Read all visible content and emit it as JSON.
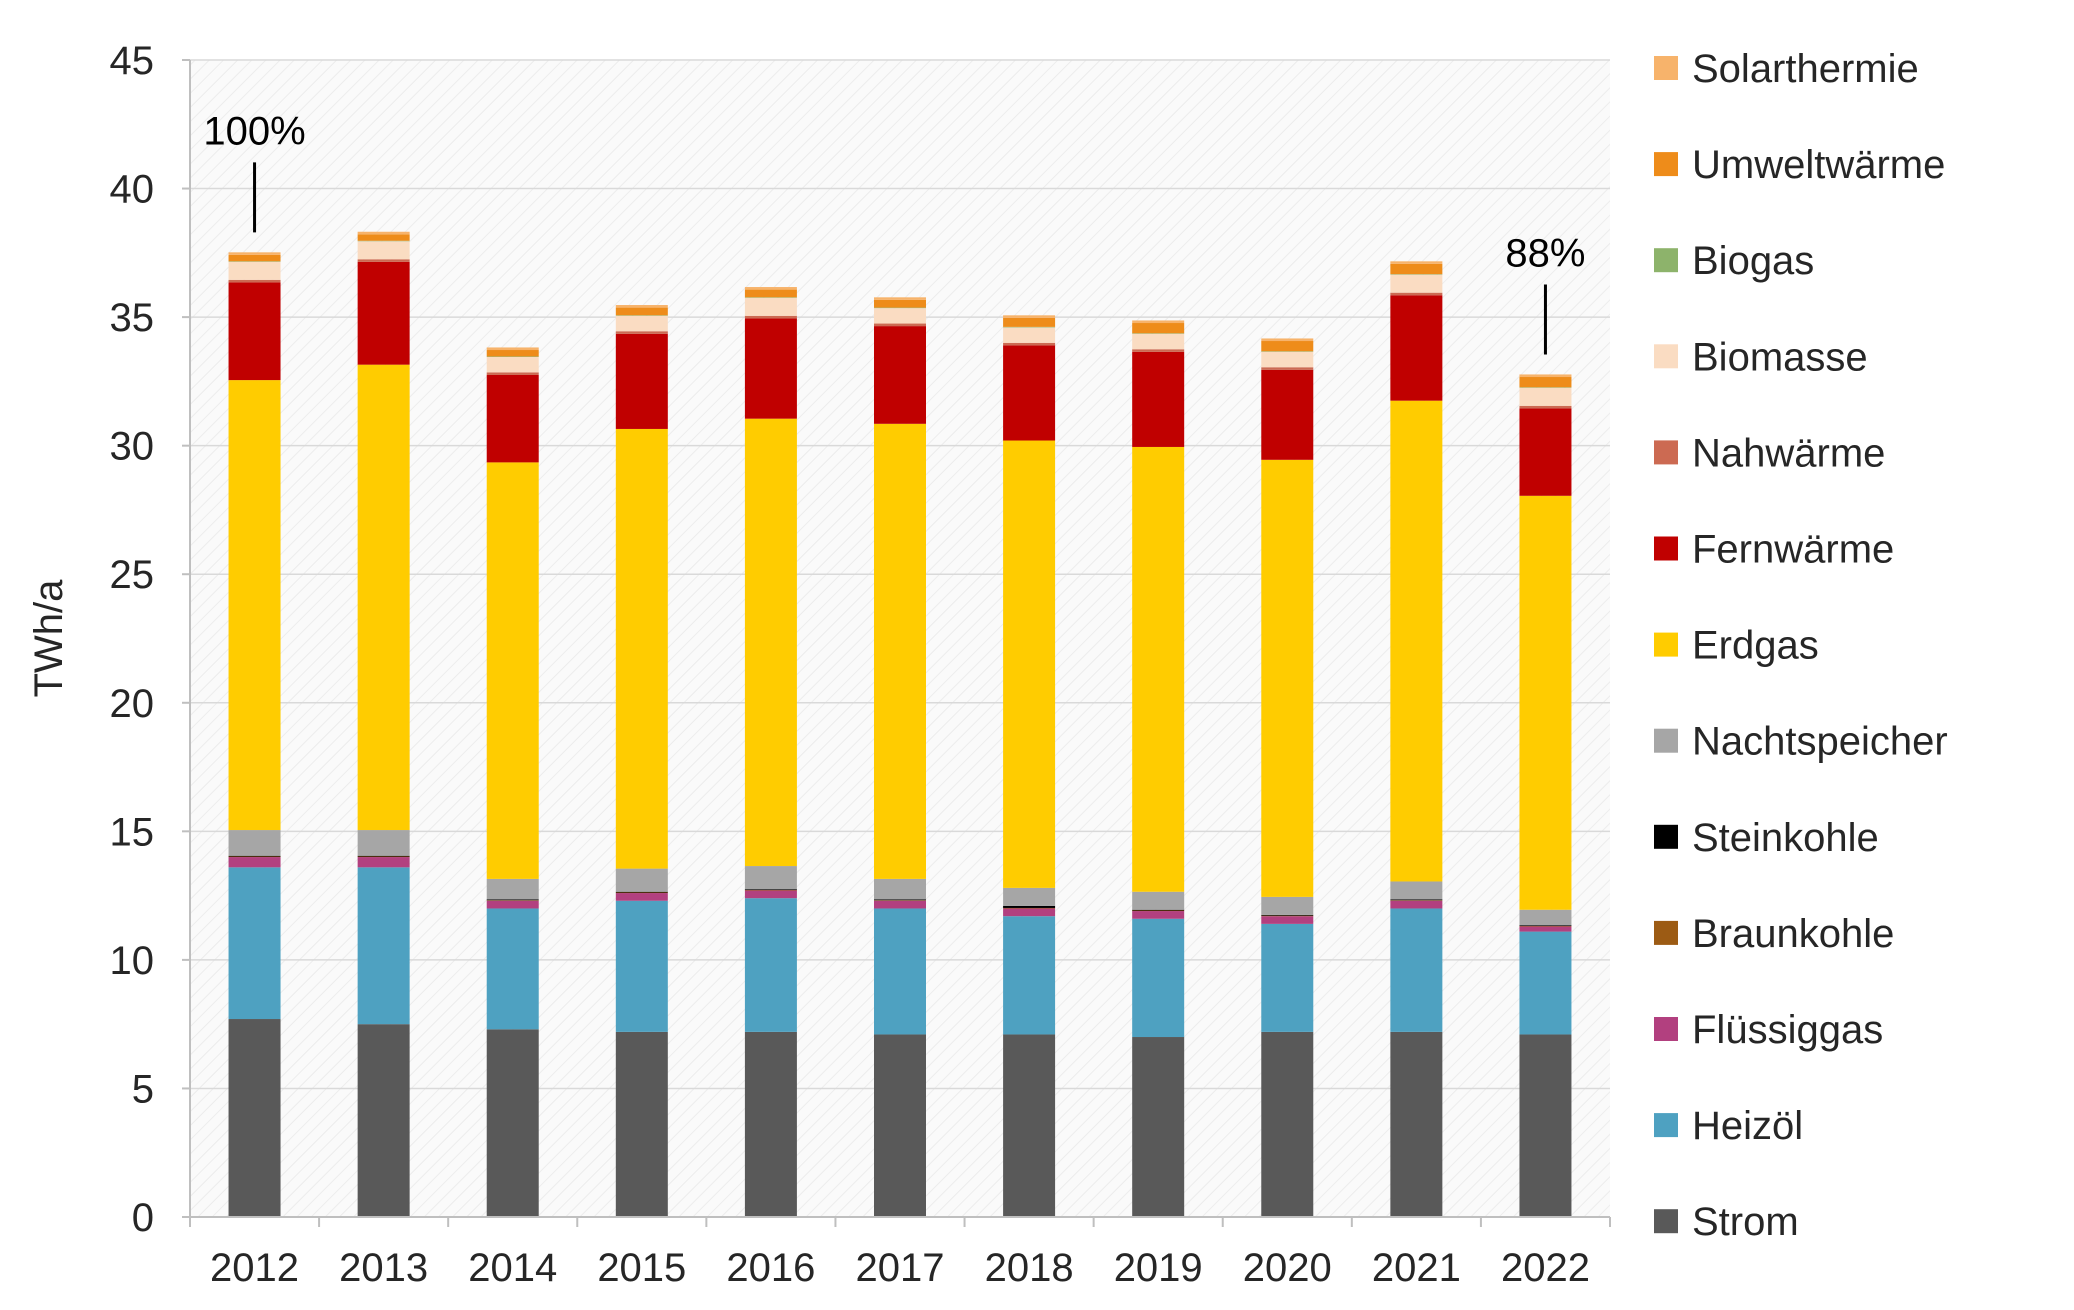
{
  "chart_data": {
    "type": "bar",
    "stacked": true,
    "title": "",
    "xlabel": "",
    "ylabel": "TWh/a",
    "ylim": [
      0,
      45
    ],
    "yticks": [
      0,
      5,
      10,
      15,
      20,
      25,
      30,
      35,
      40,
      45
    ],
    "grid": true,
    "legend_position": "right",
    "categories": [
      "2012",
      "2013",
      "2014",
      "2015",
      "2016",
      "2017",
      "2018",
      "2019",
      "2020",
      "2021",
      "2022"
    ],
    "series": [
      {
        "name": "Strom",
        "color": "#595959",
        "values": [
          7.7,
          7.5,
          7.3,
          7.2,
          7.2,
          7.1,
          7.1,
          7.0,
          7.2,
          7.2,
          7.1
        ]
      },
      {
        "name": "Heizöl",
        "color": "#4ea1c1",
        "values": [
          5.9,
          6.1,
          4.7,
          5.1,
          5.2,
          4.9,
          4.6,
          4.6,
          4.2,
          4.8,
          4.0
        ]
      },
      {
        "name": "Flüssiggas",
        "color": "#b2407f",
        "values": [
          0.4,
          0.4,
          0.3,
          0.3,
          0.3,
          0.3,
          0.3,
          0.3,
          0.3,
          0.3,
          0.2
        ]
      },
      {
        "name": "Braunkohle",
        "color": "#9c5b14",
        "values": [
          0.02,
          0.02,
          0.02,
          0.02,
          0.02,
          0.02,
          0.02,
          0.02,
          0.02,
          0.02,
          0.02
        ]
      },
      {
        "name": "Steinkohle",
        "color": "#000000",
        "values": [
          0.03,
          0.03,
          0.03,
          0.03,
          0.03,
          0.03,
          0.08,
          0.03,
          0.03,
          0.03,
          0.03
        ]
      },
      {
        "name": "Nachtspeicher",
        "color": "#a6a6a6",
        "values": [
          1.0,
          1.0,
          0.8,
          0.9,
          0.9,
          0.8,
          0.7,
          0.7,
          0.7,
          0.7,
          0.6
        ]
      },
      {
        "name": "Erdgas",
        "color": "#ffcc00",
        "values": [
          17.5,
          18.1,
          16.2,
          17.1,
          17.4,
          17.7,
          17.4,
          17.3,
          17.0,
          18.7,
          16.1
        ]
      },
      {
        "name": "Fernwärme",
        "color": "#c00000",
        "values": [
          3.8,
          4.0,
          3.4,
          3.7,
          3.9,
          3.8,
          3.7,
          3.7,
          3.5,
          4.1,
          3.4
        ]
      },
      {
        "name": "Nahwärme",
        "color": "#cc6a52",
        "values": [
          0.1,
          0.1,
          0.1,
          0.1,
          0.1,
          0.1,
          0.1,
          0.1,
          0.1,
          0.1,
          0.1
        ]
      },
      {
        "name": "Biomasse",
        "color": "#fadcc2",
        "values": [
          0.7,
          0.7,
          0.6,
          0.6,
          0.7,
          0.6,
          0.6,
          0.6,
          0.6,
          0.7,
          0.7
        ]
      },
      {
        "name": "Biogas",
        "color": "#8db36b",
        "values": [
          0.02,
          0.02,
          0.02,
          0.02,
          0.02,
          0.02,
          0.02,
          0.02,
          0.02,
          0.02,
          0.02
        ]
      },
      {
        "name": "Umweltwärme",
        "color": "#ee8c1a",
        "values": [
          0.25,
          0.25,
          0.25,
          0.3,
          0.3,
          0.3,
          0.35,
          0.4,
          0.4,
          0.4,
          0.4
        ]
      },
      {
        "name": "Solarthermie",
        "color": "#f7b36b",
        "values": [
          0.1,
          0.1,
          0.1,
          0.1,
          0.1,
          0.1,
          0.1,
          0.1,
          0.1,
          0.1,
          0.1
        ]
      }
    ],
    "legend_order": [
      "Solarthermie",
      "Umweltwärme",
      "Biogas",
      "Biomasse",
      "Nahwärme",
      "Fernwärme",
      "Erdgas",
      "Nachtspeicher",
      "Steinkohle",
      "Braunkohle",
      "Flüssiggas",
      "Heizöl",
      "Strom"
    ],
    "annotations": [
      {
        "text": "100%",
        "category": "2012"
      },
      {
        "text": "88%",
        "category": "2022"
      }
    ]
  }
}
